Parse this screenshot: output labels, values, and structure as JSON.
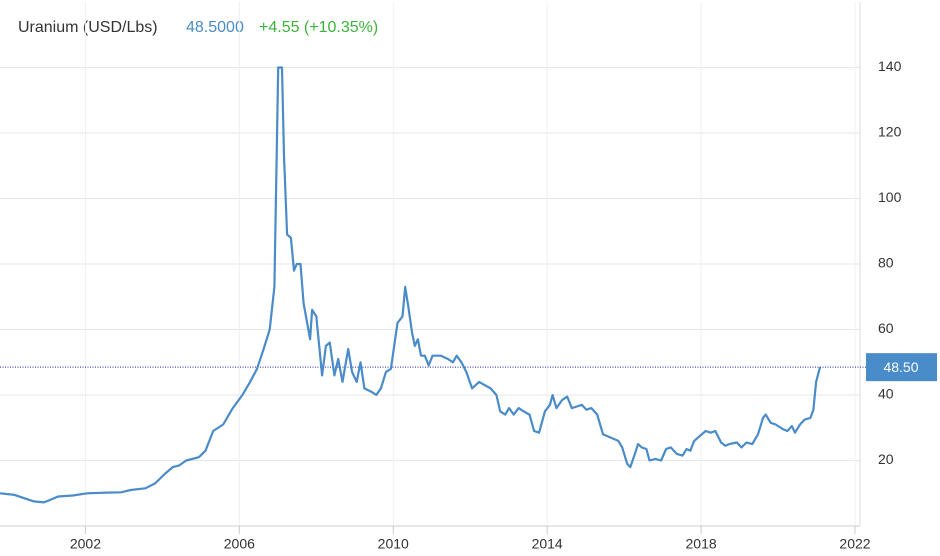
{
  "chart_data": {
    "type": "line",
    "title": "Uranium (USD/Lbs)",
    "price_text": "48.5000",
    "change_text": "+4.55 (+10.35%)",
    "color": "#4a8bc9",
    "last_value": 48.5,
    "last_value_label": "48.50",
    "x": [
      1999.78,
      2000.16,
      2000.41,
      2000.66,
      2000.92,
      2001.09,
      2001.29,
      2001.67,
      2002.05,
      2002.55,
      2002.93,
      2003.18,
      2003.56,
      2003.81,
      2004.07,
      2004.27,
      2004.44,
      2004.62,
      2004.95,
      2005.12,
      2005.32,
      2005.58,
      2005.83,
      2006.08,
      2006.28,
      2006.46,
      2006.63,
      2006.79,
      2006.91,
      2007.01,
      2007.11,
      2007.16,
      2007.24,
      2007.34,
      2007.42,
      2007.49,
      2007.59,
      2007.67,
      2007.84,
      2007.89,
      2008.0,
      2008.15,
      2008.25,
      2008.35,
      2008.47,
      2008.57,
      2008.68,
      2008.83,
      2008.93,
      2009.05,
      2009.15,
      2009.25,
      2009.43,
      2009.56,
      2009.68,
      2009.81,
      2009.94,
      2010.11,
      2010.24,
      2010.31,
      2010.39,
      2010.49,
      2010.56,
      2010.64,
      2010.72,
      2010.82,
      2010.92,
      2011.02,
      2011.24,
      2011.42,
      2011.55,
      2011.65,
      2011.77,
      2011.9,
      2012.05,
      2012.23,
      2012.38,
      2012.53,
      2012.68,
      2012.78,
      2012.91,
      2013.01,
      2013.13,
      2013.26,
      2013.39,
      2013.54,
      2013.66,
      2013.79,
      2013.94,
      2014.07,
      2014.14,
      2014.24,
      2014.39,
      2014.52,
      2014.64,
      2014.77,
      2014.9,
      2015.02,
      2015.15,
      2015.3,
      2015.45,
      2015.65,
      2015.85,
      2015.95,
      2016.08,
      2016.16,
      2016.28,
      2016.36,
      2016.46,
      2016.58,
      2016.66,
      2016.81,
      2016.96,
      2017.09,
      2017.21,
      2017.37,
      2017.52,
      2017.62,
      2017.72,
      2017.82,
      2017.97,
      2018.12,
      2018.25,
      2018.37,
      2018.52,
      2018.63,
      2018.73,
      2018.93,
      2019.05,
      2019.18,
      2019.33,
      2019.48,
      2019.61,
      2019.68,
      2019.81,
      2019.94,
      2020.14,
      2020.24,
      2020.36,
      2020.44,
      2020.57,
      2020.69,
      2020.84,
      2020.92,
      2020.99,
      2021.09
    ],
    "values": [
      10,
      9.5,
      8.5,
      7.5,
      7.2,
      8,
      9,
      9.3,
      10,
      10.2,
      10.3,
      11,
      11.5,
      13,
      16,
      18,
      18.5,
      20,
      21,
      23,
      29,
      31,
      36,
      40,
      44,
      48,
      54,
      60,
      73,
      140,
      140,
      113,
      89,
      88,
      78,
      80,
      80,
      68,
      57,
      66,
      64,
      46,
      55,
      56,
      46,
      51,
      44,
      54,
      47,
      44,
      50,
      42,
      41,
      40,
      42,
      47,
      48,
      62,
      64,
      73,
      67,
      59,
      55,
      57,
      52,
      52,
      49,
      52,
      52,
      51,
      50,
      52,
      50,
      47,
      42,
      44,
      43,
      42,
      40,
      35,
      34,
      36,
      34,
      36,
      35,
      34,
      29,
      28.5,
      35,
      37,
      40,
      36,
      38.5,
      39.5,
      36,
      36.5,
      37,
      35.5,
      36,
      34,
      28,
      27,
      26,
      24,
      19,
      18,
      22,
      25,
      24,
      23.5,
      20,
      20.5,
      20,
      23.5,
      24,
      22,
      21.5,
      23.5,
      23,
      26,
      27.5,
      29,
      28.5,
      29,
      25.5,
      24.5,
      25,
      25.5,
      24,
      25.5,
      25,
      28,
      33,
      34,
      31.5,
      31,
      29.5,
      29,
      30.5,
      28.5,
      31,
      32.5,
      33,
      35.5,
      44,
      48.5
    ],
    "xlim": [
      1999.78,
      2022.13
    ],
    "ylim": [
      0,
      160
    ],
    "xticks": [
      2002,
      2006,
      2010,
      2014,
      2018,
      2022
    ],
    "yticks": [
      20,
      40,
      60,
      80,
      100,
      120,
      140
    ],
    "grid": true
  }
}
